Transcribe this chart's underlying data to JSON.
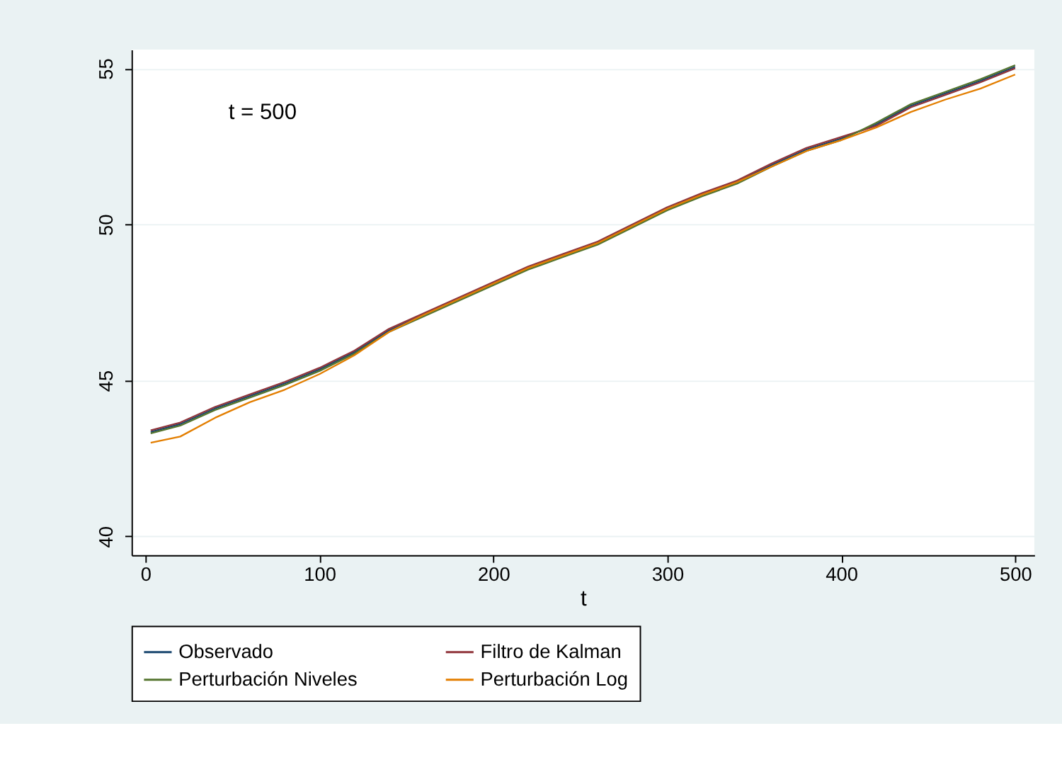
{
  "chart_data": {
    "type": "line",
    "xlabel": "t",
    "annotations": [
      "t = 500"
    ],
    "xlim": [
      -8,
      511
    ],
    "xticks": [
      0,
      100,
      200,
      300,
      400,
      500
    ],
    "ylim": [
      39.4,
      55.6
    ],
    "yticks": [
      40,
      45,
      50,
      55
    ],
    "grid": "y",
    "legend": "bottom",
    "line_style": "solid",
    "marker": "none",
    "x": [
      3,
      20,
      40,
      60,
      80,
      100,
      120,
      140,
      160,
      180,
      200,
      220,
      240,
      260,
      280,
      300,
      320,
      340,
      360,
      380,
      400,
      420,
      440,
      460,
      480,
      500
    ],
    "series": [
      {
        "name": "Observado",
        "color": "#1a476f",
        "values": [
          43.35,
          43.6,
          44.1,
          44.5,
          44.9,
          45.35,
          45.9,
          46.6,
          47.1,
          47.6,
          48.1,
          48.6,
          49.0,
          49.4,
          49.95,
          50.5,
          50.95,
          51.35,
          51.9,
          52.4,
          52.75,
          53.2,
          53.8,
          54.2,
          54.6,
          55.05
        ]
      },
      {
        "name": "Filtro de Kalman",
        "color": "#90353b",
        "values": [
          43.4,
          43.65,
          44.15,
          44.55,
          44.95,
          45.4,
          45.95,
          46.65,
          47.15,
          47.65,
          48.15,
          48.65,
          49.05,
          49.45,
          50.0,
          50.55,
          51.0,
          51.4,
          51.95,
          52.45,
          52.8,
          53.15,
          53.75,
          54.15,
          54.55,
          55.0
        ]
      },
      {
        "name": "Perturbación Niveles",
        "color": "#55752f",
        "values": [
          43.3,
          43.55,
          44.05,
          44.45,
          44.85,
          45.3,
          45.85,
          46.55,
          47.05,
          47.55,
          48.05,
          48.55,
          48.95,
          49.35,
          49.9,
          50.45,
          50.9,
          51.3,
          51.85,
          52.35,
          52.7,
          53.25,
          53.85,
          54.25,
          54.65,
          55.1
        ]
      },
      {
        "name": "Perturbación Log",
        "color": "#e37e00",
        "values": [
          43.0,
          43.2,
          43.8,
          44.3,
          44.7,
          45.2,
          45.8,
          46.55,
          47.1,
          47.6,
          48.1,
          48.6,
          49.0,
          49.4,
          49.95,
          50.5,
          50.95,
          51.35,
          51.85,
          52.35,
          52.7,
          53.1,
          53.6,
          54.0,
          54.35,
          54.8
        ]
      }
    ]
  }
}
